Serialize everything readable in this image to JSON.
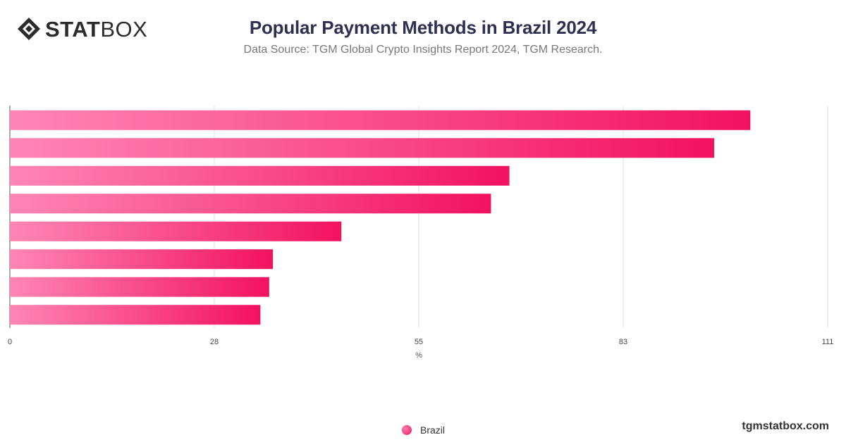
{
  "header": {
    "logo_text_bold": "STAT",
    "logo_text_light": "BOX",
    "title": "Popular Payment Methods in Brazil 2024",
    "subtitle": "Data Source: TGM Global Crypto Insights Report 2024, TGM Research."
  },
  "footer": {
    "site": "tgmstatbox.com"
  },
  "colors": {
    "bar_start": "#ff86b4",
    "bar_end": "#f3125f",
    "grid": "#dddddd",
    "axis_text": "#444444"
  },
  "chart_data": {
    "type": "bar",
    "orientation": "horizontal",
    "categories": [
      "",
      "",
      "",
      "",
      "",
      "",
      "",
      ""
    ],
    "series": [
      {
        "name": "Brazil",
        "values": [
          100.5,
          95.6,
          67.8,
          65.3,
          45.0,
          35.7,
          35.2,
          34.0
        ]
      }
    ],
    "xlabel": "%",
    "ylabel": "",
    "xlim": [
      0,
      111
    ],
    "ticks": [
      "0",
      "28",
      "55",
      "83",
      "111"
    ],
    "legend": "bottom-center",
    "grid": true
  }
}
